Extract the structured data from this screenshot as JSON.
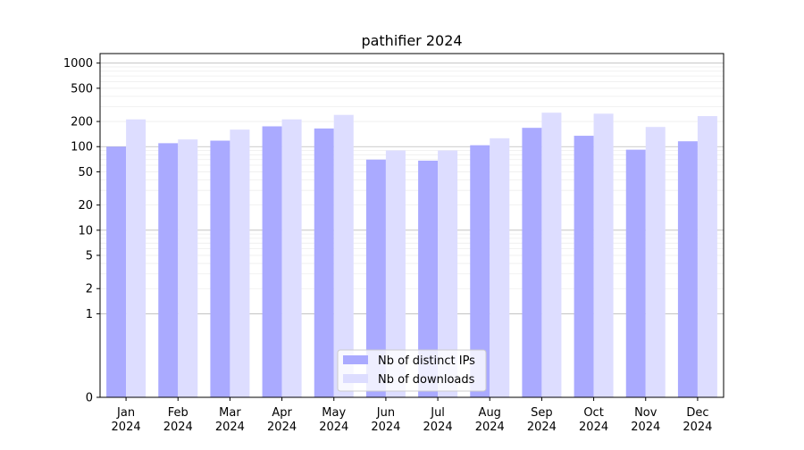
{
  "chart_data": {
    "type": "bar",
    "title": "pathifier 2024",
    "xlabel": "",
    "ylabel": "",
    "y_scale": "symlog",
    "categories": [
      [
        "Jan",
        "2024"
      ],
      [
        "Feb",
        "2024"
      ],
      [
        "Mar",
        "2024"
      ],
      [
        "Apr",
        "2024"
      ],
      [
        "May",
        "2024"
      ],
      [
        "Jun",
        "2024"
      ],
      [
        "Jul",
        "2024"
      ],
      [
        "Aug",
        "2024"
      ],
      [
        "Sep",
        "2024"
      ],
      [
        "Oct",
        "2024"
      ],
      [
        "Nov",
        "2024"
      ],
      [
        "Dec",
        "2024"
      ]
    ],
    "series": [
      {
        "name": "Nb of distinct IPs",
        "color": "#aaaaff",
        "values": [
          100,
          110,
          118,
          175,
          165,
          70,
          68,
          104,
          168,
          135,
          92,
          116
        ]
      },
      {
        "name": "Nb of downloads",
        "color": "#ddddff",
        "values": [
          212,
          122,
          160,
          212,
          240,
          90,
          90,
          126,
          255,
          248,
          172,
          232
        ]
      }
    ],
    "yticks": [
      0,
      1,
      2,
      5,
      10,
      20,
      50,
      100,
      200,
      500,
      1000
    ],
    "ylim": [
      0,
      1300
    ],
    "grid": true,
    "legend_position": "lower-center"
  }
}
